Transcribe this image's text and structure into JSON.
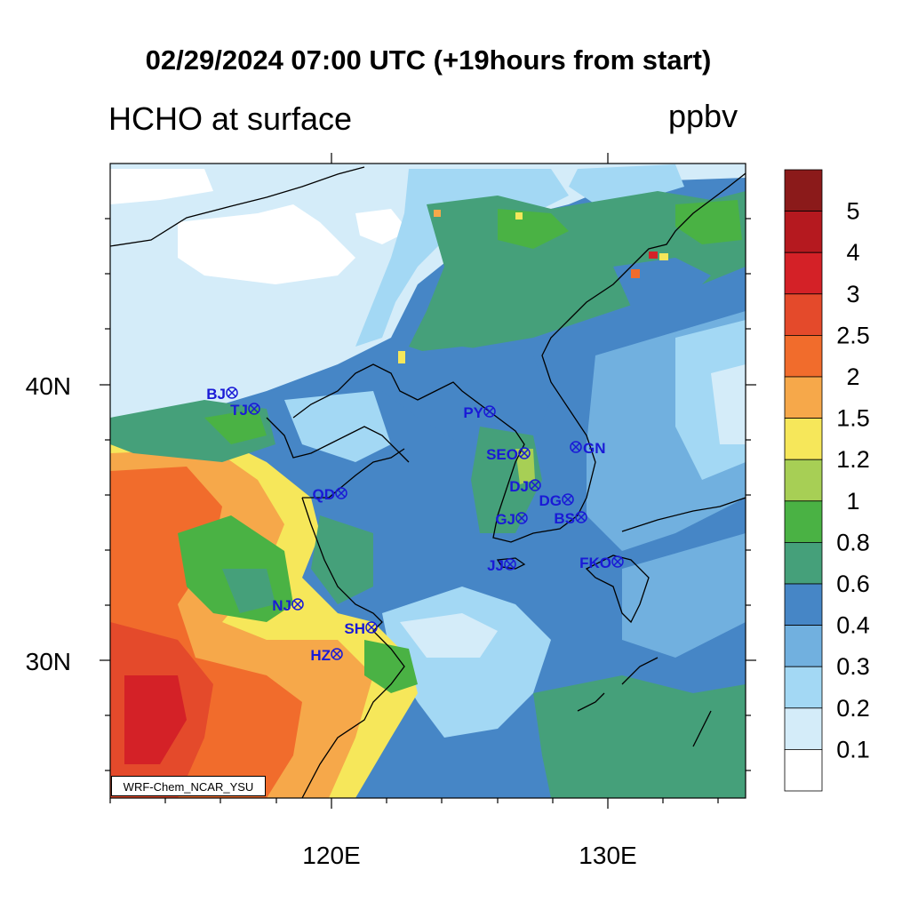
{
  "title": "02/29/2024 07:00 UTC (+19hours from start)",
  "left_title": "HCHO at surface",
  "units": "ppbv",
  "credit": "WRF-Chem_NCAR_YSU",
  "axes": {
    "lon_labels": [
      "120E",
      "130E"
    ],
    "lat_labels": [
      "40N",
      "30N"
    ]
  },
  "colorbar": {
    "levels": [
      "5",
      "4",
      "3",
      "2.5",
      "2",
      "1.5",
      "1.2",
      "1",
      "0.8",
      "0.6",
      "0.4",
      "0.3",
      "0.2",
      "0.1"
    ],
    "colors": [
      "#8b1a1a",
      "#b5191f",
      "#d42127",
      "#e44a2b",
      "#f16c2c",
      "#f6a84a",
      "#f6e75a",
      "#a7cf55",
      "#4ab244",
      "#45a07a",
      "#4686c6",
      "#71b0df",
      "#a3d8f4",
      "#d4ecf9",
      "#ffffff"
    ]
  },
  "stations": [
    {
      "id": "BJ"
    },
    {
      "id": "TJ"
    },
    {
      "id": "QD"
    },
    {
      "id": "PY"
    },
    {
      "id": "SEO"
    },
    {
      "id": "GN"
    },
    {
      "id": "DJ"
    },
    {
      "id": "DG"
    },
    {
      "id": "GJ"
    },
    {
      "id": "BS"
    },
    {
      "id": "JJ"
    },
    {
      "id": "FKO"
    },
    {
      "id": "NJ"
    },
    {
      "id": "SH"
    },
    {
      "id": "HZ"
    }
  ],
  "station_color": "#1a1ad6"
}
